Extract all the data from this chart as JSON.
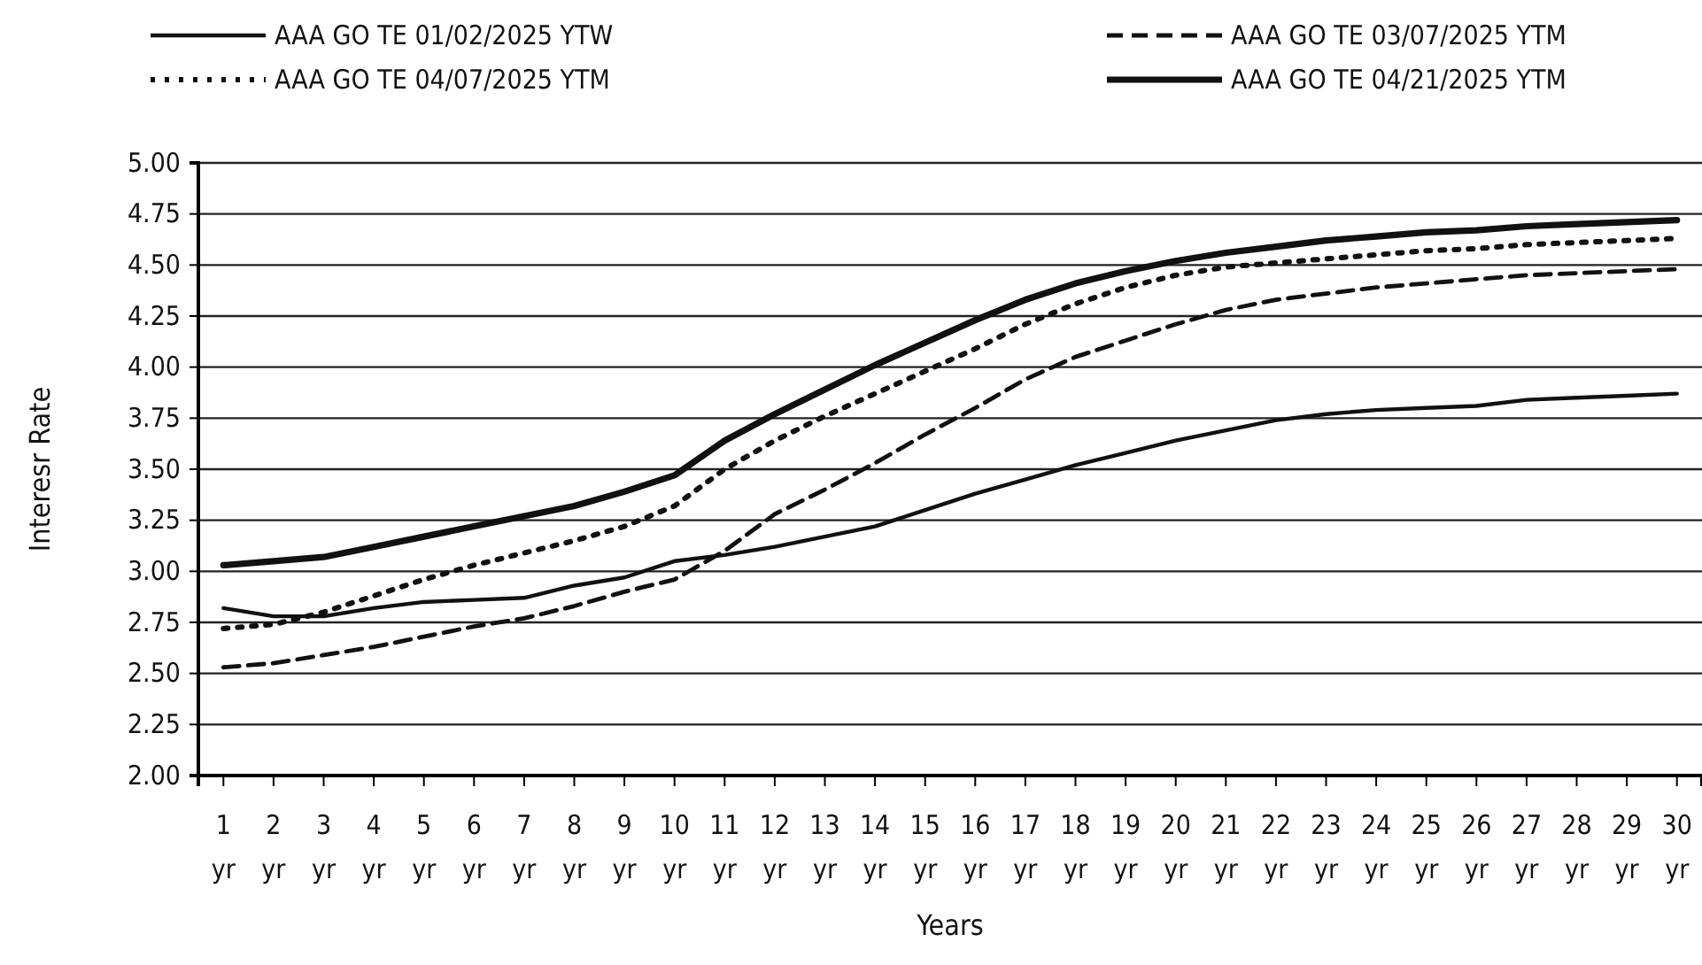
{
  "chart_data": {
    "type": "line",
    "xlabel": "Years",
    "ylabel": "Interesr Rate",
    "categories": [
      "1 yr",
      "2 yr",
      "3 yr",
      "4 yr",
      "5 yr",
      "6 yr",
      "7 yr",
      "8 yr",
      "9 yr",
      "10 yr",
      "11 yr",
      "12 yr",
      "13 yr",
      "14 yr",
      "15 yr",
      "16 yr",
      "17 yr",
      "18 yr",
      "19 yr",
      "20 yr",
      "21 yr",
      "22 yr",
      "23 yr",
      "24 yr",
      "25 yr",
      "26 yr",
      "27 yr",
      "28 yr",
      "29 yr",
      "30 yr"
    ],
    "series": [
      {
        "name": "AAA GO TE 01/02/2025 YTW",
        "color": "#111111",
        "line_style": "solid",
        "values": [
          2.82,
          2.78,
          2.78,
          2.82,
          2.85,
          2.86,
          2.87,
          2.93,
          2.97,
          3.05,
          3.08,
          3.12,
          3.17,
          3.22,
          3.3,
          3.38,
          3.45,
          3.52,
          3.58,
          3.64,
          3.69,
          3.74,
          3.77,
          3.79,
          3.8,
          3.81,
          3.84,
          3.85,
          3.86,
          3.87
        ]
      },
      {
        "name": "AAA GO TE 03/07/2025 YTM",
        "color": "#111111",
        "line_style": "dashed",
        "values": [
          2.53,
          2.55,
          2.59,
          2.63,
          2.68,
          2.73,
          2.77,
          2.83,
          2.9,
          2.96,
          3.1,
          3.28,
          3.4,
          3.53,
          3.67,
          3.8,
          3.94,
          4.05,
          4.13,
          4.21,
          4.28,
          4.33,
          4.36,
          4.39,
          4.41,
          4.43,
          4.45,
          4.46,
          4.47,
          4.48
        ]
      },
      {
        "name": "AAA GO TE 04/07/2025 YTM",
        "color": "#111111",
        "line_style": "dotted",
        "values": [
          2.72,
          2.74,
          2.8,
          2.88,
          2.96,
          3.03,
          3.09,
          3.15,
          3.22,
          3.32,
          3.5,
          3.64,
          3.76,
          3.87,
          3.98,
          4.09,
          4.21,
          4.31,
          4.39,
          4.45,
          4.49,
          4.51,
          4.53,
          4.55,
          4.57,
          4.58,
          4.6,
          4.61,
          4.62,
          4.63
        ]
      },
      {
        "name": "AAA GO TE 04/21/2025 YTM",
        "color": "#111111",
        "line_style": "solid",
        "values": [
          3.03,
          3.05,
          3.07,
          3.12,
          3.17,
          3.22,
          3.27,
          3.32,
          3.39,
          3.47,
          3.64,
          3.77,
          3.89,
          4.01,
          4.12,
          4.23,
          4.33,
          4.41,
          4.47,
          4.52,
          4.56,
          4.59,
          4.62,
          4.64,
          4.66,
          4.67,
          4.69,
          4.7,
          4.71,
          4.72
        ]
      }
    ],
    "ylim": [
      2,
      5
    ],
    "yticks": [
      {
        "value": 2,
        "label": "2.00"
      },
      {
        "value": 2.25,
        "label": "2.25"
      },
      {
        "value": 2.5,
        "label": "2.50"
      },
      {
        "value": 2.75,
        "label": "2.75"
      },
      {
        "value": 3,
        "label": "3.00"
      },
      {
        "value": 3.25,
        "label": "3.25"
      },
      {
        "value": 3.5,
        "label": "3.50"
      },
      {
        "value": 3.75,
        "label": "3.75"
      },
      {
        "value": 4,
        "label": "4.00"
      },
      {
        "value": 4.25,
        "label": "4.25"
      },
      {
        "value": 4.5,
        "label": "4.50"
      },
      {
        "value": 4.75,
        "label": "4.75"
      },
      {
        "value": 5,
        "label": "5.00"
      }
    ],
    "grid": "y",
    "legend": "top",
    "marker": "none"
  }
}
